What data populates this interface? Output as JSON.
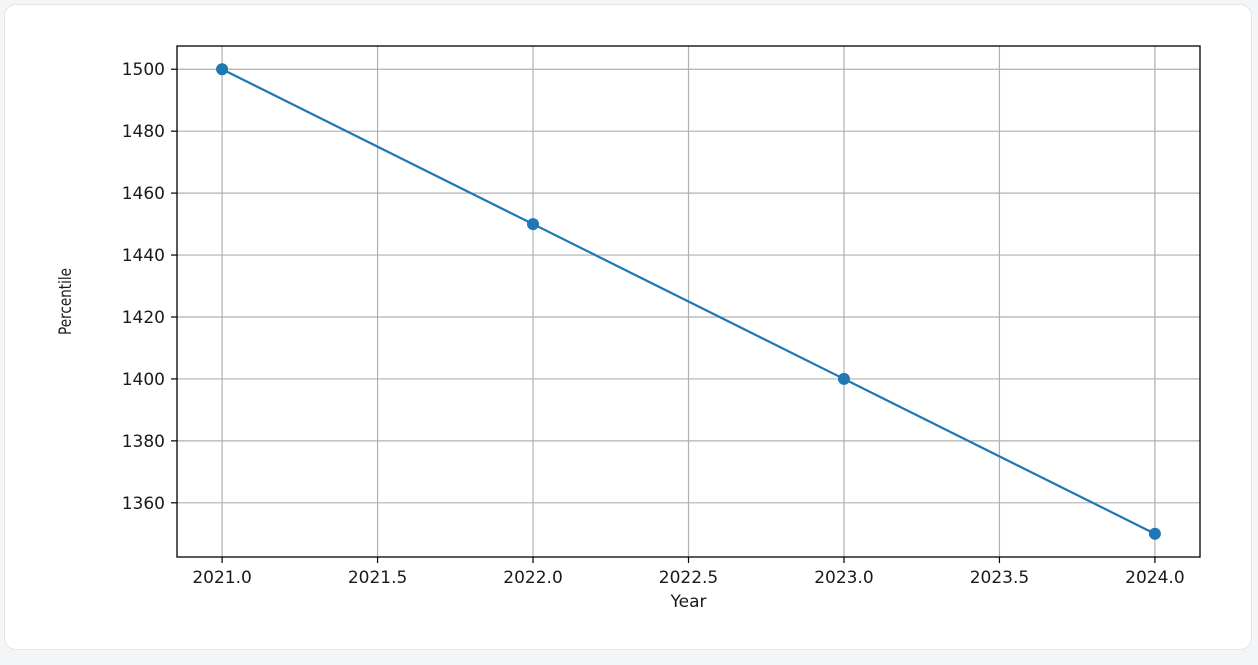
{
  "chart_data": {
    "type": "line",
    "title": "",
    "xlabel": "Year",
    "ylabel": "Percentile",
    "x": [
      2021,
      2022,
      2023,
      2024
    ],
    "series": [
      {
        "values": [
          1500,
          1450,
          1400,
          1350
        ],
        "color": "#1f77b4",
        "marker": "circle"
      }
    ],
    "xlim": [
      2020.855,
      2024.145
    ],
    "ylim": [
      1342.5,
      1507.5
    ],
    "xticks": [
      2021.0,
      2021.5,
      2022.0,
      2022.5,
      2023.0,
      2023.5,
      2024.0
    ],
    "xtick_labels": [
      "2021.0",
      "2021.5",
      "2022.0",
      "2022.5",
      "2023.0",
      "2023.5",
      "2024.0"
    ],
    "yticks": [
      1360,
      1380,
      1400,
      1420,
      1440,
      1460,
      1480,
      1500
    ],
    "ytick_labels": [
      "1360",
      "1380",
      "1400",
      "1420",
      "1440",
      "1460",
      "1480",
      "1500"
    ],
    "grid": true,
    "grid_color": "#b0b0b0",
    "legend": false
  }
}
